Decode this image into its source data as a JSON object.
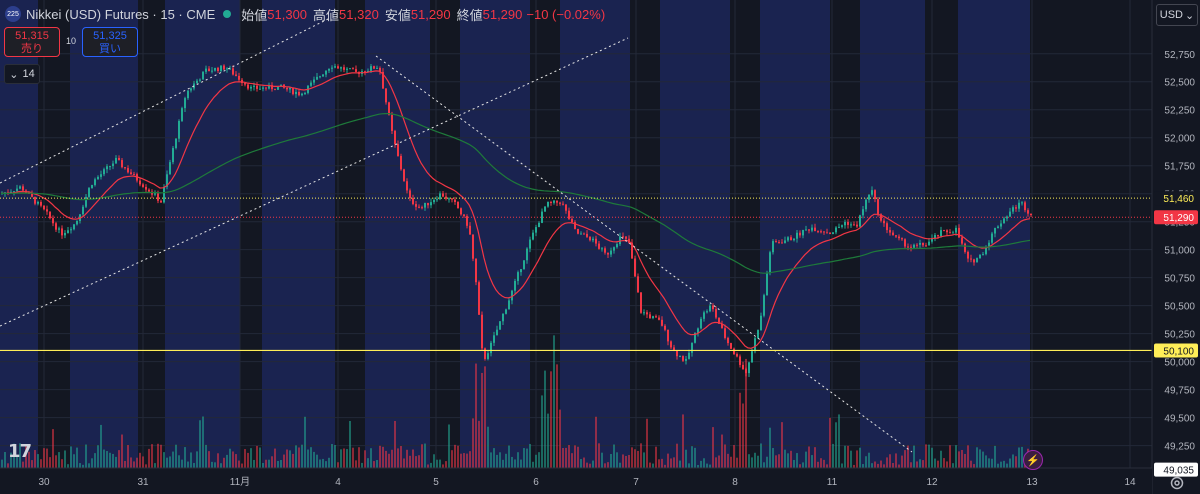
{
  "header": {
    "symbol_badge": "225",
    "title": "Nikkei (USD) Futures · 15 · CME",
    "ohlc": [
      {
        "label": "始値",
        "value": "51,300"
      },
      {
        "label": "高値",
        "value": "51,320"
      },
      {
        "label": "安値",
        "value": "51,290"
      },
      {
        "label": "終値",
        "value": "51,290"
      },
      {
        "label": "",
        "value": "−10 (−0.02%)"
      }
    ]
  },
  "trade": {
    "sell_price": "51,315",
    "sell_label": "売り",
    "spread": "10",
    "buy_price": "51,325",
    "buy_label": "買い"
  },
  "indicator_toggle": {
    "chevron": "⌄",
    "value": "14"
  },
  "currency_button": {
    "label": "USD",
    "chevron": "⌄"
  },
  "icons": {
    "logo": "tradingview-logo-icon",
    "settings": "settings-gear-icon",
    "flash": "flash-icon"
  },
  "colors": {
    "background": "#131722",
    "session_band": "#1a2350",
    "grid": "#232838",
    "up": "#22ab94",
    "down": "#f23645",
    "ma_fast": "#f23645",
    "ma_slow": "#1e7a3a",
    "trendline": "#e6e6e6",
    "last_price": "#f23645",
    "level": "#ffee58",
    "axis_text": "#b2b5be"
  },
  "chart_data": {
    "type": "candlestick",
    "y_ticks": [
      "52,750",
      "52,500",
      "52,250",
      "52,000",
      "51,750",
      "51,500",
      "51,250",
      "51,000",
      "50,750",
      "50,500",
      "50,250",
      "50,000",
      "49,750",
      "49,500",
      "49,250"
    ],
    "y_range": [
      49050,
      52980
    ],
    "x_tick_labels": [
      "30",
      "31",
      "11月",
      "4",
      "5",
      "6",
      "7",
      "8",
      "11",
      "12",
      "13",
      "14"
    ],
    "path": [
      [
        0,
        51500
      ],
      [
        20,
        51560
      ],
      [
        45,
        51330
      ],
      [
        60,
        51140
      ],
      [
        75,
        51240
      ],
      [
        90,
        51590
      ],
      [
        115,
        51800
      ],
      [
        130,
        51680
      ],
      [
        160,
        51430
      ],
      [
        185,
        52400
      ],
      [
        205,
        52600
      ],
      [
        225,
        52630
      ],
      [
        250,
        52440
      ],
      [
        280,
        52450
      ],
      [
        300,
        52390
      ],
      [
        330,
        52650
      ],
      [
        355,
        52580
      ],
      [
        378,
        52640
      ],
      [
        392,
        52000
      ],
      [
        408,
        51450
      ],
      [
        420,
        51370
      ],
      [
        440,
        51500
      ],
      [
        455,
        51400
      ],
      [
        468,
        51200
      ],
      [
        475,
        50700
      ],
      [
        482,
        50000
      ],
      [
        490,
        50150
      ],
      [
        510,
        50600
      ],
      [
        530,
        51100
      ],
      [
        545,
        51400
      ],
      [
        560,
        51430
      ],
      [
        575,
        51150
      ],
      [
        590,
        51100
      ],
      [
        605,
        50950
      ],
      [
        620,
        51120
      ],
      [
        628,
        51060
      ],
      [
        640,
        50450
      ],
      [
        660,
        50350
      ],
      [
        672,
        50100
      ],
      [
        685,
        50000
      ],
      [
        700,
        50400
      ],
      [
        710,
        50500
      ],
      [
        725,
        50200
      ],
      [
        745,
        49900
      ],
      [
        760,
        50400
      ],
      [
        770,
        51050
      ],
      [
        790,
        51100
      ],
      [
        810,
        51200
      ],
      [
        830,
        51150
      ],
      [
        845,
        51250
      ],
      [
        855,
        51200
      ],
      [
        870,
        51550
      ],
      [
        880,
        51250
      ],
      [
        895,
        51100
      ],
      [
        910,
        51020
      ],
      [
        925,
        51050
      ],
      [
        940,
        51150
      ],
      [
        955,
        51180
      ],
      [
        968,
        50880
      ],
      [
        980,
        50950
      ],
      [
        995,
        51200
      ],
      [
        1010,
        51350
      ],
      [
        1020,
        51420
      ],
      [
        1032,
        51290
      ]
    ],
    "ma_fast_span": 16,
    "ma_slow_span": 120,
    "session_bands": [
      [
        0,
        38
      ],
      [
        70,
        138
      ],
      [
        165,
        240
      ],
      [
        262,
        335
      ],
      [
        365,
        430
      ],
      [
        460,
        530
      ],
      [
        560,
        630
      ],
      [
        660,
        730
      ],
      [
        760,
        830
      ],
      [
        860,
        925
      ],
      [
        958,
        1030
      ]
    ],
    "vline_ticks": [
      44,
      143,
      240,
      338,
      436,
      536,
      636,
      735,
      832,
      932,
      1032,
      1130
    ],
    "trendlines": [
      [
        [
          0,
          183
        ],
        [
          330,
          18
        ]
      ],
      [
        [
          0,
          326
        ],
        [
          628,
          38
        ]
      ],
      [
        [
          376,
          56
        ],
        [
          912,
          452
        ]
      ]
    ],
    "level_line": {
      "y": 49125,
      "label": "50,100"
    },
    "resistance_line": {
      "price": 51460,
      "label": "51,460"
    },
    "last_price": {
      "price": 51290,
      "label": "51,290"
    },
    "level_price": 50100,
    "low_label": "49,035",
    "seed": 7
  }
}
